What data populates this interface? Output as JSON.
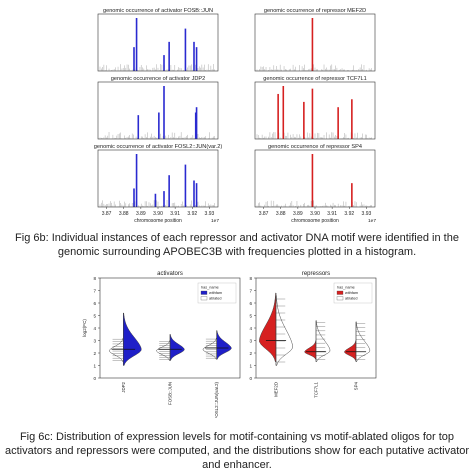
{
  "figure_6b": {
    "caption": "Fig 6b: Individual instances of each repressor and activator DNA motif were identified in the genomic surrounding APOBEC3B with frequencies plotted in a histogram.",
    "x_tick_labels": [
      "3.87",
      "3.88",
      "3.89",
      "3.90",
      "3.91",
      "3.92",
      "3.93"
    ],
    "x_offset_label": "1e7",
    "xlabel": "chromosome position",
    "panels": [
      {
        "title": "genomic occurrence of activator FOSB::JUN",
        "color": "#2a2ad0",
        "peaks": [
          3.886,
          3.8875,
          3.9035,
          3.9065,
          3.916,
          3.921,
          3.9225
        ]
      },
      {
        "title": "genomic occurrence of activator JDP2",
        "color": "#2a2ad0",
        "peaks": [
          3.8885,
          3.9005,
          3.9035,
          3.922,
          3.9225
        ]
      },
      {
        "title": "genomic occurrence of activator FOSL2::JUN(var.2)",
        "color": "#2a2ad0",
        "peaks": [
          3.886,
          3.8875,
          3.8985,
          3.9035,
          3.9065,
          3.916,
          3.921,
          3.9225
        ]
      },
      {
        "title": "genomic occurrence of repressor MEF2D",
        "color": "#d62020",
        "peaks": [
          3.8985
        ]
      },
      {
        "title": "genomic occurrence of repressor TCF7L1",
        "color": "#d62020",
        "peaks": [
          3.8785,
          3.8815,
          3.8935,
          3.8985,
          3.9135,
          3.9215
        ]
      },
      {
        "title": "genomic occurrence of repressor SP4",
        "color": "#d62020",
        "peaks": [
          3.8985,
          3.9215
        ]
      }
    ]
  },
  "figure_6c": {
    "caption": "Fig 6c: Distribution of expression levels for motif-containing vs motif-ablated oligos for top activators and repressors were computed, and the distributions show for each putative activator and enhancer.",
    "legend_title": "has_name",
    "legend_items": [
      "withfam",
      "ablated"
    ],
    "y_ticks": [
      "0",
      "1",
      "2",
      "3",
      "4",
      "5",
      "6",
      "7",
      "8"
    ],
    "ylabel": "log2(FC)",
    "panels": [
      {
        "title": "activators",
        "color": "#1f1fc8",
        "categories": [
          "JDP2",
          "FOSB::JUN",
          "FOSL2::JUN(var.2)"
        ]
      },
      {
        "title": "repressors",
        "color": "#d62020",
        "categories": [
          "MEF2D",
          "TCF7L1",
          "SP4"
        ]
      }
    ]
  },
  "chart_data": [
    {
      "type": "bar",
      "title": "genomic occurrence of activator FOSB::JUN",
      "xlabel": "chromosome position",
      "x_unit": "1e7",
      "xlim": [
        3.865,
        3.935
      ],
      "x": [
        3.886,
        3.8875,
        3.9035,
        3.9065,
        3.916,
        3.921,
        3.9225
      ],
      "values": [
        0.45,
        1.0,
        0.3,
        0.55,
        0.8,
        0.55,
        0.45
      ]
    },
    {
      "type": "bar",
      "title": "genomic occurrence of activator JDP2",
      "xlabel": "chromosome position",
      "x_unit": "1e7",
      "xlim": [
        3.865,
        3.935
      ],
      "x": [
        3.8885,
        3.9005,
        3.9035,
        3.922,
        3.9225
      ],
      "values": [
        0.45,
        0.5,
        1.0,
        0.5,
        0.6
      ]
    },
    {
      "type": "bar",
      "title": "genomic occurrence of activator FOSL2::JUN(var.2)",
      "xlabel": "chromosome position",
      "x_unit": "1e7",
      "xlim": [
        3.865,
        3.935
      ],
      "x": [
        3.886,
        3.8875,
        3.8985,
        3.9035,
        3.9065,
        3.916,
        3.921,
        3.9225
      ],
      "values": [
        0.35,
        1.0,
        0.25,
        0.3,
        0.6,
        0.8,
        0.5,
        0.45
      ]
    },
    {
      "type": "bar",
      "title": "genomic occurrence of repressor MEF2D",
      "xlabel": "chromosome position",
      "x_unit": "1e7",
      "xlim": [
        3.865,
        3.935
      ],
      "x": [
        3.8985
      ],
      "values": [
        1.0
      ]
    },
    {
      "type": "bar",
      "title": "genomic occurrence of repressor TCF7L1",
      "xlabel": "chromosome position",
      "x_unit": "1e7",
      "xlim": [
        3.865,
        3.935
      ],
      "x": [
        3.8785,
        3.8815,
        3.8935,
        3.8985,
        3.9135,
        3.9215
      ],
      "values": [
        0.85,
        1.0,
        0.7,
        0.95,
        0.6,
        0.75
      ]
    },
    {
      "type": "bar",
      "title": "genomic occurrence of repressor SP4",
      "xlabel": "chromosome position",
      "x_unit": "1e7",
      "xlim": [
        3.865,
        3.935
      ],
      "x": [
        3.8985,
        3.9215
      ],
      "values": [
        1.0,
        0.45
      ]
    },
    {
      "type": "violin",
      "title": "activators",
      "ylabel": "log2(FC)",
      "ylim": [
        0,
        8
      ],
      "categories": [
        "JDP2",
        "FOSB::JUN",
        "FOSL2::JUN(var.2)"
      ],
      "series": [
        {
          "name": "withfam",
          "color": "#1f1fc8",
          "ranges": [
            [
              1.0,
              5.2
            ],
            [
              1.4,
              3.5
            ],
            [
              1.5,
              3.8
            ]
          ],
          "medians": [
            2.3,
            2.3,
            2.4
          ]
        },
        {
          "name": "ablated",
          "color": "#ffffff",
          "ranges": [
            [
              1.3,
              3.2
            ],
            [
              1.4,
              3.0
            ],
            [
              1.5,
              3.2
            ]
          ],
          "medians": [
            2.2,
            2.2,
            2.3
          ]
        }
      ]
    },
    {
      "type": "violin",
      "title": "repressors",
      "ylabel": "log2(FC)",
      "ylim": [
        0,
        8
      ],
      "categories": [
        "MEF2D",
        "TCF7L1",
        "SP4"
      ],
      "series": [
        {
          "name": "withfam",
          "color": "#d62020",
          "ranges": [
            [
              1.3,
              6.8
            ],
            [
              1.5,
              3.0
            ],
            [
              1.4,
              3.0
            ]
          ],
          "medians": [
            3.0,
            2.1,
            2.1
          ]
        },
        {
          "name": "ablated",
          "color": "#ffffff",
          "ranges": [
            [
              1.0,
              6.6
            ],
            [
              1.3,
              4.6
            ],
            [
              1.3,
              4.5
            ]
          ],
          "medians": [
            2.5,
            2.2,
            2.2
          ]
        }
      ]
    }
  ]
}
